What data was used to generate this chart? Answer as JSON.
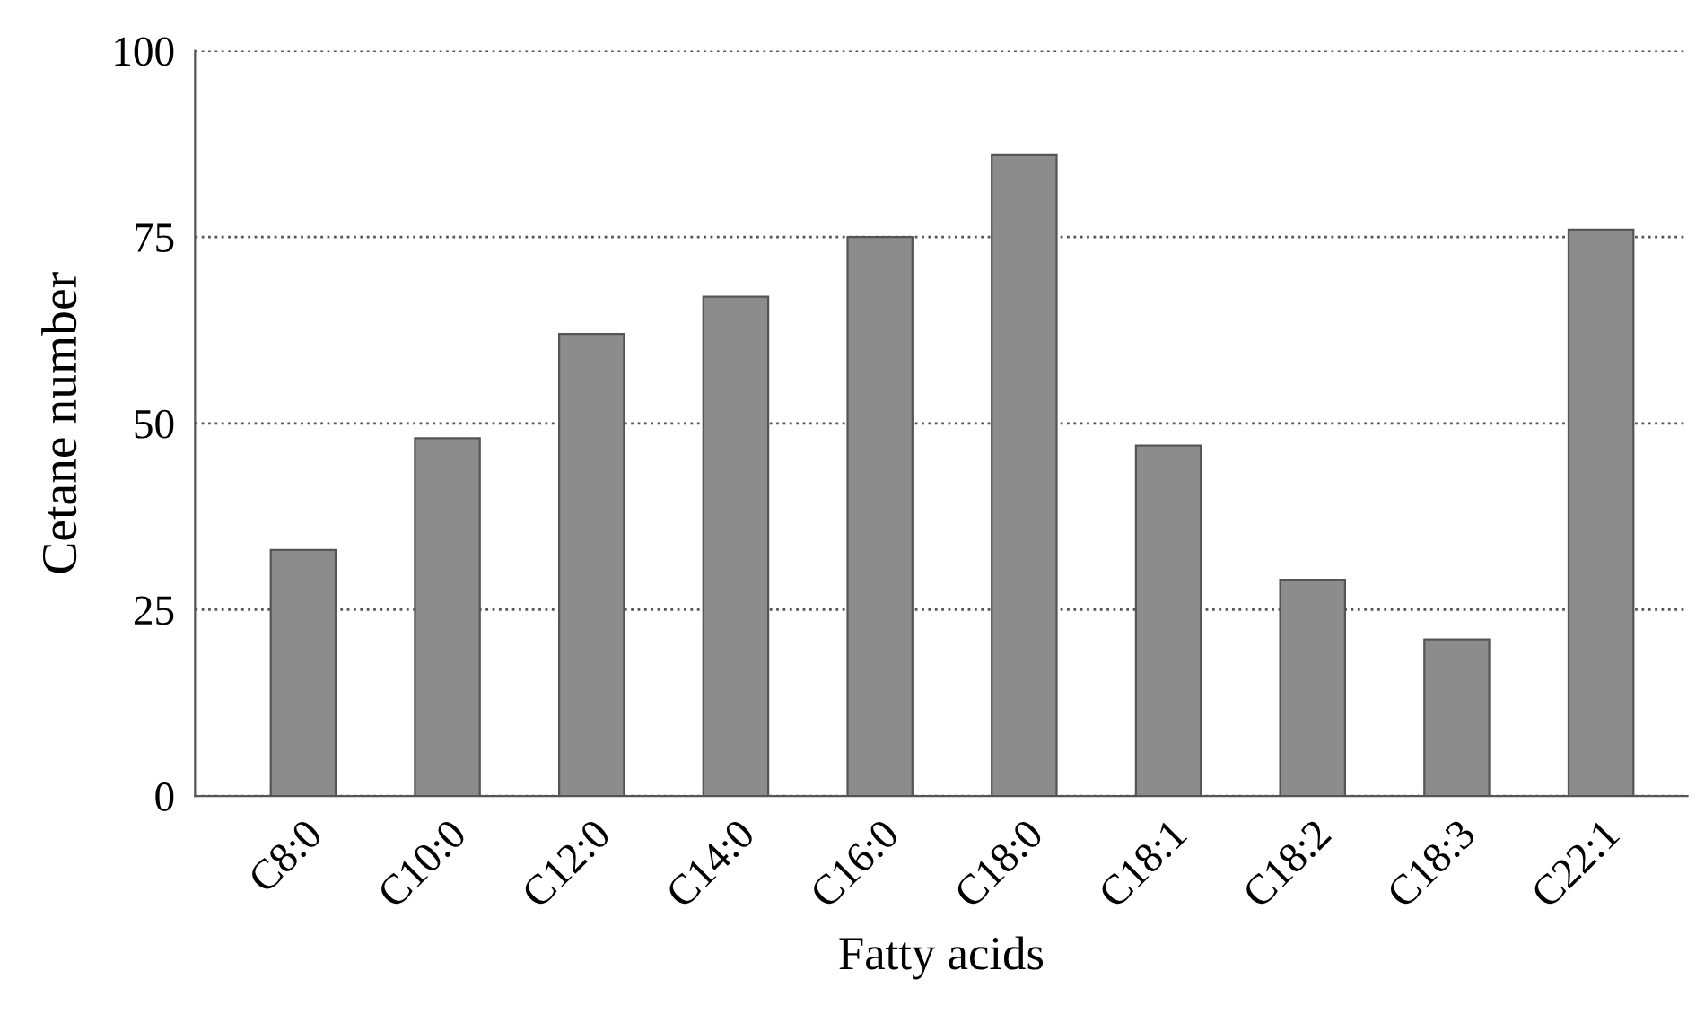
{
  "chart_data": {
    "type": "bar",
    "xlabel": "Fatty acids",
    "ylabel": "Cetane number",
    "categories": [
      "C8:0",
      "C10:0",
      "C12:0",
      "C14:0",
      "C16:0",
      "C18:0",
      "C18:1",
      "C18:2",
      "C18:3",
      "C22:1"
    ],
    "values": [
      33,
      48,
      62,
      67,
      75,
      86,
      47,
      29,
      21,
      76
    ],
    "color": "#8c8c8c",
    "ylim": [
      0,
      100
    ],
    "yticks": [
      0,
      25,
      50,
      75,
      100
    ],
    "grid": "y"
  }
}
